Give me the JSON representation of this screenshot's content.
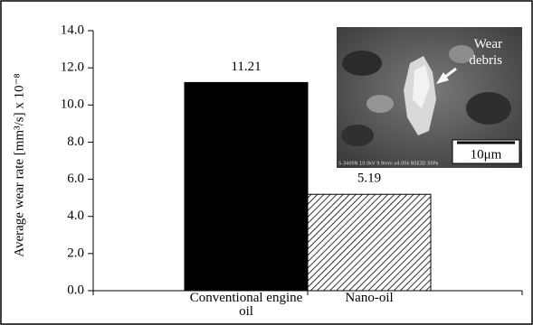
{
  "chart_data": {
    "type": "bar",
    "ylabel": "Average wear rate [mm³/s] x 10⁻⁸",
    "categories": [
      "Conventional engine oil",
      "Nano-oil"
    ],
    "values": [
      11.21,
      5.19
    ],
    "colors": [
      "#000000",
      "#ffffff"
    ],
    "hatch": [
      false,
      true
    ],
    "ylim": [
      0,
      14
    ],
    "yticks": [
      {
        "value": 0,
        "label": "0.0"
      },
      {
        "value": 2,
        "label": "2.0"
      },
      {
        "value": 4,
        "label": "4.0"
      },
      {
        "value": 6,
        "label": "6.0"
      },
      {
        "value": 8,
        "label": "8.0"
      },
      {
        "value": 10,
        "label": "10.0"
      },
      {
        "value": 12,
        "label": "12.0"
      },
      {
        "value": 14,
        "label": "14.0"
      }
    ],
    "inset": {
      "annotation": "Wear debris",
      "scale_bar": "10μm",
      "footer": "S-3400N 10.0kV 9.9mm x4.00k BSE3D 50Pa"
    }
  }
}
